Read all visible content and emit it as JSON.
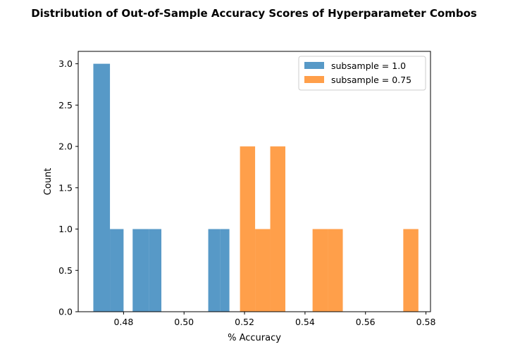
{
  "chart_data": {
    "type": "bar",
    "title": "Distribution of Out-of-Sample Accuracy Scores of Hyperparameter Combos",
    "xlabel": "% Accuracy",
    "ylabel": "Count",
    "xlim": [
      0.465,
      0.5815
    ],
    "ylim": [
      0,
      3.15
    ],
    "xticks": [
      "0.48",
      "0.50",
      "0.52",
      "0.54",
      "0.56",
      "0.58"
    ],
    "xtick_values": [
      0.48,
      0.5,
      0.52,
      0.54,
      0.56,
      0.58
    ],
    "yticks": [
      "0.0",
      "0.5",
      "1.0",
      "1.5",
      "2.0",
      "2.5",
      "3.0"
    ],
    "ytick_values": [
      0,
      0.5,
      1.0,
      1.5,
      2.0,
      2.5,
      3.0
    ],
    "grid": false,
    "legend_position": "top-right",
    "series": [
      {
        "name": "subsample = 1.0",
        "color": "#1f77b4",
        "opacity": 0.75,
        "bins": [
          {
            "x0": 0.47,
            "x1": 0.4755,
            "count": 3
          },
          {
            "x0": 0.4755,
            "x1": 0.48,
            "count": 1
          },
          {
            "x0": 0.483,
            "x1": 0.4885,
            "count": 1
          },
          {
            "x0": 0.4885,
            "x1": 0.4925,
            "count": 1
          },
          {
            "x0": 0.508,
            "x1": 0.512,
            "count": 1
          },
          {
            "x0": 0.512,
            "x1": 0.515,
            "count": 1
          }
        ]
      },
      {
        "name": "subsample = 0.75",
        "color": "#ff7f0e",
        "opacity": 0.75,
        "bins": [
          {
            "x0": 0.5185,
            "x1": 0.5235,
            "count": 2
          },
          {
            "x0": 0.5235,
            "x1": 0.5285,
            "count": 1
          },
          {
            "x0": 0.5285,
            "x1": 0.5335,
            "count": 2
          },
          {
            "x0": 0.5425,
            "x1": 0.5475,
            "count": 1
          },
          {
            "x0": 0.5475,
            "x1": 0.5525,
            "count": 1
          },
          {
            "x0": 0.5725,
            "x1": 0.5775,
            "count": 1
          }
        ]
      }
    ]
  }
}
